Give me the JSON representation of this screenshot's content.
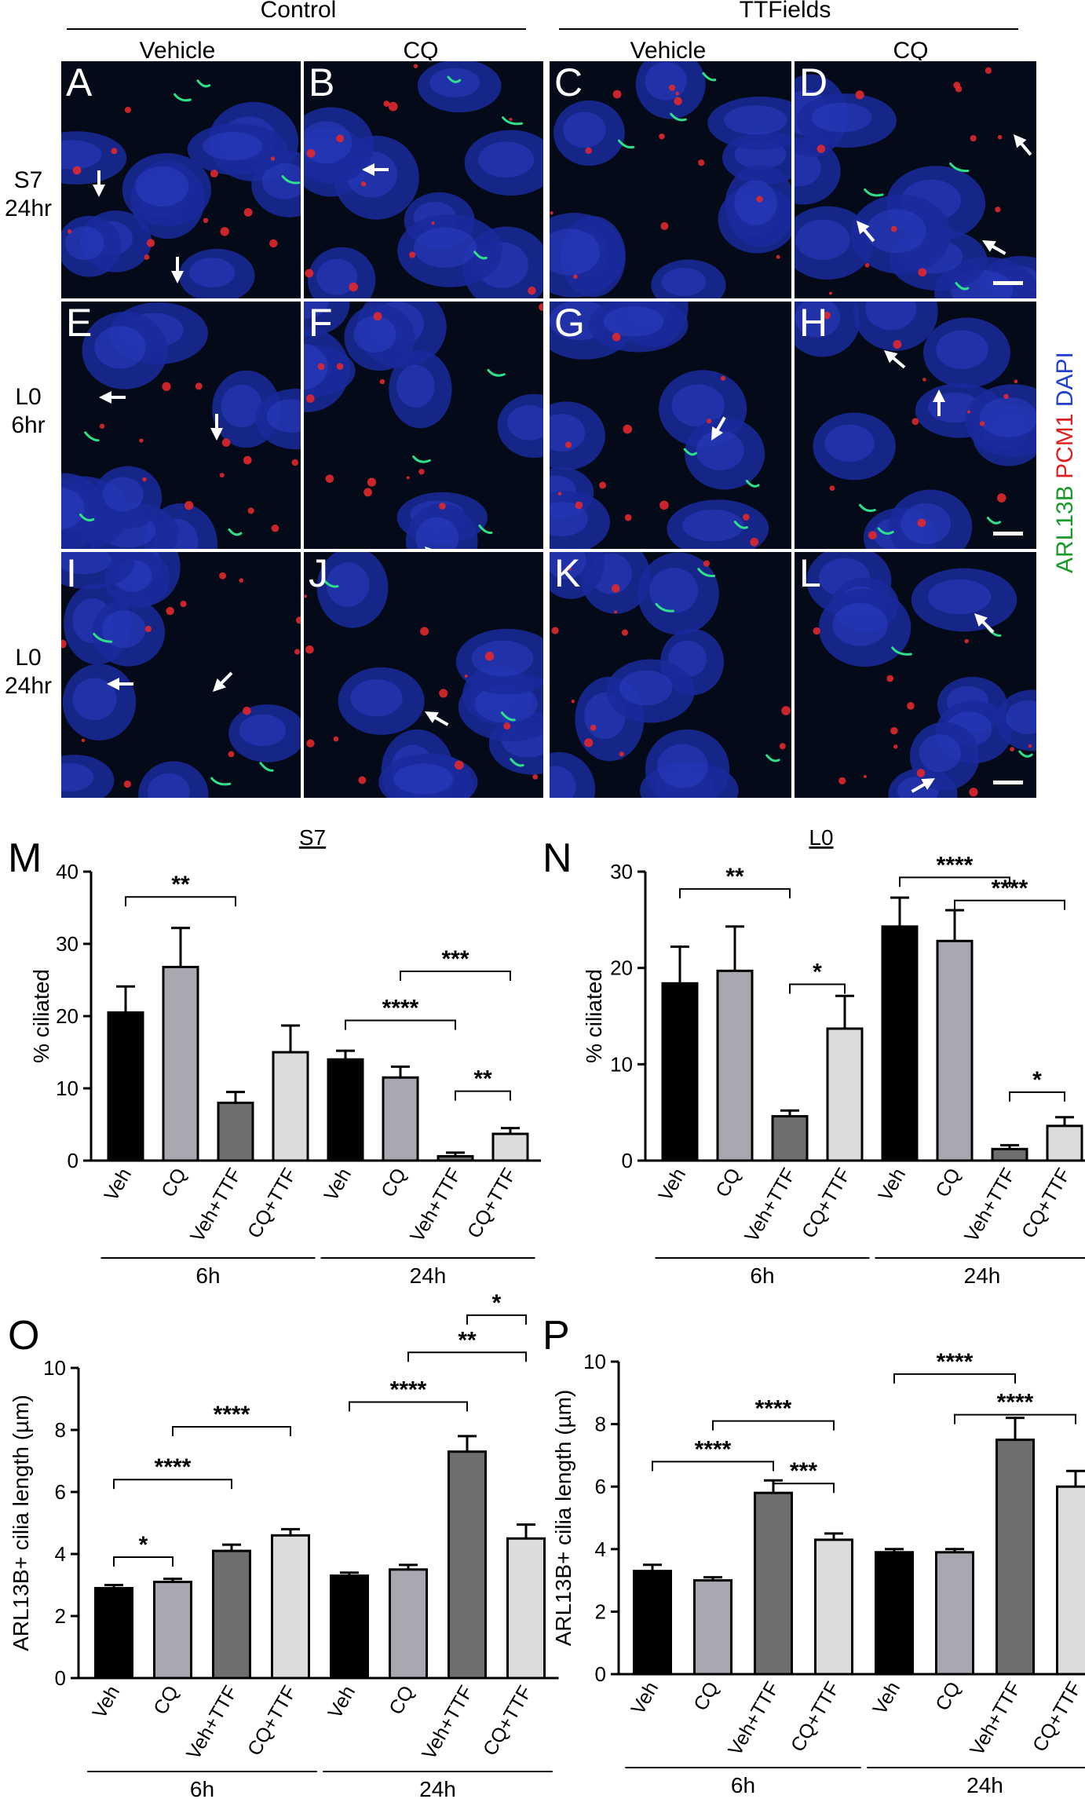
{
  "figure": {
    "col_groups": [
      "Control",
      "TTFields"
    ],
    "col_labels": [
      "Vehicle",
      "CQ",
      "Vehicle",
      "CQ"
    ],
    "row_labels": [
      "S7\n24hr",
      "L0\n6hr",
      "L0\n24hr"
    ],
    "panel_letters": [
      "A",
      "B",
      "C",
      "D",
      "E",
      "F",
      "G",
      "H",
      "I",
      "J",
      "K",
      "L"
    ],
    "legend": [
      {
        "text": "ARL13B",
        "color": "#1a9a2a"
      },
      {
        "text": "PCM1",
        "color": "#e02020"
      },
      {
        "text": "DAPI",
        "color": "#2040d0"
      }
    ]
  },
  "chart_data": [
    {
      "letter": "M",
      "type": "bar",
      "title": "S7",
      "ylabel": "% ciliated",
      "ylim": [
        0,
        40
      ],
      "yticks": [
        0,
        10,
        20,
        30,
        40
      ],
      "categories": [
        "Veh",
        "CQ",
        "Veh+TTF",
        "CQ+TTF",
        "Veh",
        "CQ",
        "Veh+TTF",
        "CQ+TTF"
      ],
      "groups": [
        {
          "label": "6h",
          "from": 0,
          "to": 3
        },
        {
          "label": "24h",
          "from": 4,
          "to": 7
        }
      ],
      "values": [
        20.5,
        26.8,
        8.0,
        15.0,
        14.0,
        11.5,
        0.6,
        3.7
      ],
      "errors": [
        3.6,
        5.4,
        1.5,
        3.7,
        1.2,
        1.5,
        0.5,
        0.8
      ],
      "colors": [
        "#000000",
        "#a8a8b0",
        "#6e6e6e",
        "#dcdcdc",
        "#000000",
        "#a8a8b0",
        "#6e6e6e",
        "#dcdcdc"
      ],
      "sig": [
        {
          "from": 0,
          "to": 2,
          "label": "**",
          "y": 36.5
        },
        {
          "from": 5,
          "to": 7,
          "label": "***",
          "y": 26.2
        },
        {
          "from": 4,
          "to": 6,
          "label": "****",
          "y": 19.4
        },
        {
          "from": 6,
          "to": 7,
          "label": "**",
          "y": 9.6
        }
      ]
    },
    {
      "letter": "N",
      "type": "bar",
      "title": "L0",
      "ylabel": "% ciliated",
      "ylim": [
        0,
        30
      ],
      "yticks": [
        0,
        10,
        20,
        30
      ],
      "categories": [
        "Veh",
        "CQ",
        "Veh+TTF",
        "CQ+TTF",
        "Veh",
        "CQ",
        "Veh+TTF",
        "CQ+TTF"
      ],
      "groups": [
        {
          "label": "6h",
          "from": 0,
          "to": 3
        },
        {
          "label": "24h",
          "from": 4,
          "to": 7
        }
      ],
      "values": [
        18.4,
        19.7,
        4.6,
        13.7,
        24.3,
        22.8,
        1.2,
        3.6
      ],
      "errors": [
        3.8,
        4.6,
        0.6,
        3.4,
        3.0,
        3.2,
        0.4,
        0.9
      ],
      "colors": [
        "#000000",
        "#a8a8b0",
        "#6e6e6e",
        "#dcdcdc",
        "#000000",
        "#a8a8b0",
        "#6e6e6e",
        "#dcdcdc"
      ],
      "sig": [
        {
          "from": 0,
          "to": 2,
          "label": "**",
          "y": 28.2
        },
        {
          "from": 2,
          "to": 3,
          "label": "*",
          "y": 18.3
        },
        {
          "from": 4,
          "to": 6,
          "label": "****",
          "y": 29.4
        },
        {
          "from": 5,
          "to": 7,
          "label": "****",
          "y": 27.0
        },
        {
          "from": 6,
          "to": 7,
          "label": "*",
          "y": 7.1
        }
      ]
    },
    {
      "letter": "O",
      "type": "bar",
      "title": "",
      "ylabel": "ARL13B+ cilia length (µm)",
      "ylim": [
        0,
        10
      ],
      "yticks": [
        0,
        2,
        4,
        6,
        8,
        10
      ],
      "categories": [
        "Veh",
        "CQ",
        "Veh+TTF",
        "CQ+TTF",
        "Veh",
        "CQ",
        "Veh+TTF",
        "CQ+TTF"
      ],
      "groups": [
        {
          "label": "6h",
          "from": 0,
          "to": 3
        },
        {
          "label": "24h",
          "from": 4,
          "to": 7
        }
      ],
      "values": [
        2.9,
        3.1,
        4.1,
        4.6,
        3.3,
        3.5,
        7.3,
        4.5
      ],
      "errors": [
        0.1,
        0.1,
        0.2,
        0.2,
        0.1,
        0.15,
        0.5,
        0.45
      ],
      "colors": [
        "#000000",
        "#a8a8b0",
        "#6e6e6e",
        "#dcdcdc",
        "#000000",
        "#a8a8b0",
        "#6e6e6e",
        "#dcdcdc"
      ],
      "sig": [
        {
          "from": 0,
          "to": 1,
          "label": "*",
          "y": 3.9
        },
        {
          "from": 0,
          "to": 2,
          "label": "****",
          "y": 6.4
        },
        {
          "from": 1,
          "to": 3,
          "label": "****",
          "y": 8.1
        },
        {
          "from": 4,
          "to": 6,
          "label": "****",
          "y": 8.9
        },
        {
          "from": 5,
          "to": 7,
          "label": "**",
          "y": 10.5
        },
        {
          "from": 6,
          "to": 7,
          "label": "*",
          "y": 11.7
        }
      ]
    },
    {
      "letter": "P",
      "type": "bar",
      "title": "",
      "ylabel": "ARL13B+ cilia length (µm)",
      "ylim": [
        0,
        10
      ],
      "yticks": [
        0,
        2,
        4,
        6,
        8,
        10
      ],
      "categories": [
        "Veh",
        "CQ",
        "Veh+TTF",
        "CQ+TTF",
        "Veh",
        "CQ",
        "Veh+TTF",
        "CQ+TTF"
      ],
      "groups": [
        {
          "label": "6h",
          "from": 0,
          "to": 3
        },
        {
          "label": "24h",
          "from": 4,
          "to": 7
        }
      ],
      "values": [
        3.3,
        3.0,
        5.8,
        4.3,
        3.9,
        3.9,
        7.5,
        6.0
      ],
      "errors": [
        0.2,
        0.1,
        0.4,
        0.2,
        0.1,
        0.1,
        0.7,
        0.5
      ],
      "colors": [
        "#000000",
        "#a8a8b0",
        "#6e6e6e",
        "#dcdcdc",
        "#000000",
        "#a8a8b0",
        "#6e6e6e",
        "#dcdcdc"
      ],
      "sig": [
        {
          "from": 0,
          "to": 2,
          "label": "****",
          "y": 6.8
        },
        {
          "from": 1,
          "to": 3,
          "label": "****",
          "y": 8.1
        },
        {
          "from": 2,
          "to": 3,
          "label": "***",
          "y": 6.1
        },
        {
          "from": 4,
          "to": 6,
          "label": "****",
          "y": 9.6
        },
        {
          "from": 5,
          "to": 7,
          "label": "****",
          "y": 8.3
        }
      ]
    }
  ]
}
